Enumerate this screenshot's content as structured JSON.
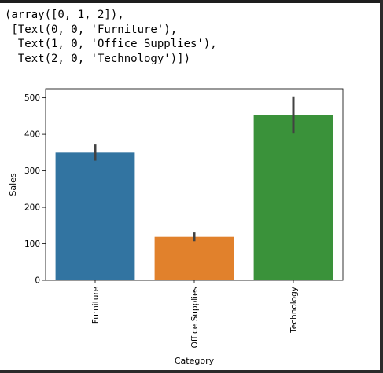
{
  "output": {
    "lines": [
      "(array([0, 1, 2]),",
      " [Text(0, 0, 'Furniture'),",
      "  Text(1, 0, 'Office Supplies'),",
      "  Text(2, 0, 'Technology')])"
    ]
  },
  "chart_data": {
    "type": "bar",
    "categories": [
      "Furniture",
      "Office Supplies",
      "Technology"
    ],
    "values": [
      350,
      119,
      452
    ],
    "error_bars": [
      [
        328,
        372
      ],
      [
        107,
        131
      ],
      [
        402,
        504
      ]
    ],
    "colors": [
      "#3274a1",
      "#e1812c",
      "#3a923a"
    ],
    "xlabel": "Category",
    "ylabel": "Sales",
    "ylim": [
      0,
      525
    ],
    "yticks": [
      0,
      100,
      200,
      300,
      400,
      500
    ],
    "grid": false,
    "legend": "none"
  }
}
